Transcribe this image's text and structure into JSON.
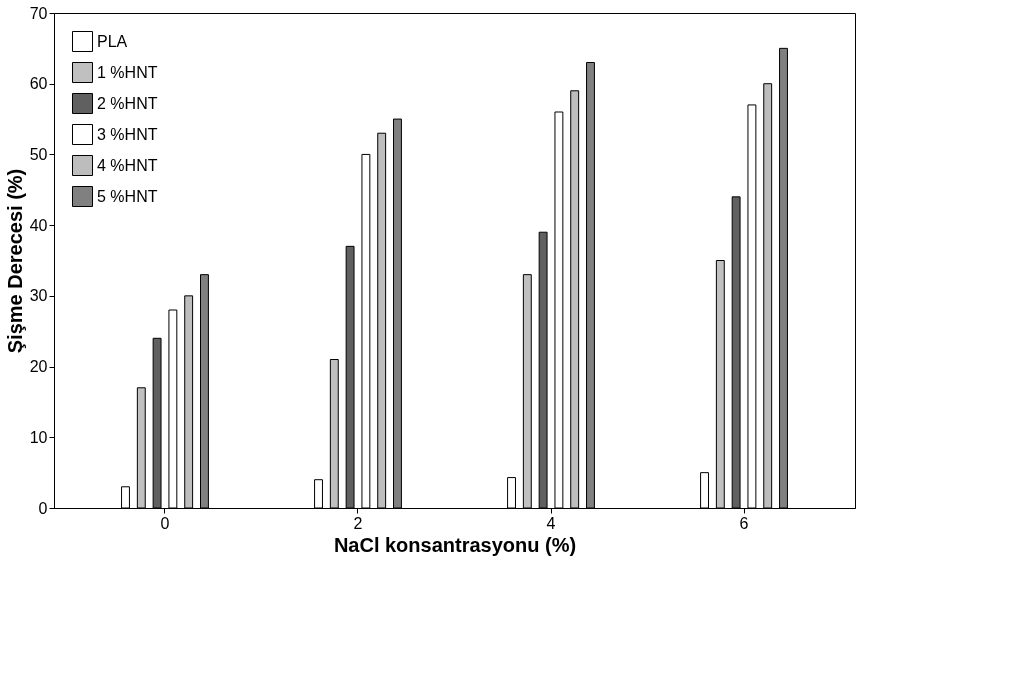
{
  "chart_data": {
    "type": "bar",
    "xlabel": "NaCl konsantrasyonu (%)",
    "ylabel": "Şişme Derecesi (%)",
    "categories": [
      "0",
      "2",
      "4",
      "6"
    ],
    "series": [
      {
        "name": "PLA",
        "color": "#ffffff",
        "values": [
          3,
          4,
          4.3,
          5
        ]
      },
      {
        "name": "1 %HNT",
        "color": "#c0c0c0",
        "values": [
          17,
          21,
          33,
          35
        ]
      },
      {
        "name": "2 %HNT",
        "color": "#606060",
        "values": [
          24,
          37,
          39,
          44
        ]
      },
      {
        "name": "3 %HNT",
        "color": "#ffffff",
        "values": [
          28,
          50,
          56,
          57
        ]
      },
      {
        "name": "4 %HNT",
        "color": "#bdbdbd",
        "values": [
          30,
          53,
          59,
          60
        ]
      },
      {
        "name": "5 %HNT",
        "color": "#808080",
        "values": [
          33,
          55,
          63,
          65
        ]
      }
    ],
    "ylim": [
      0,
      70
    ],
    "yticks": [
      0,
      10,
      20,
      30,
      40,
      50,
      60,
      70
    ],
    "grid": false,
    "legend": "top left"
  }
}
